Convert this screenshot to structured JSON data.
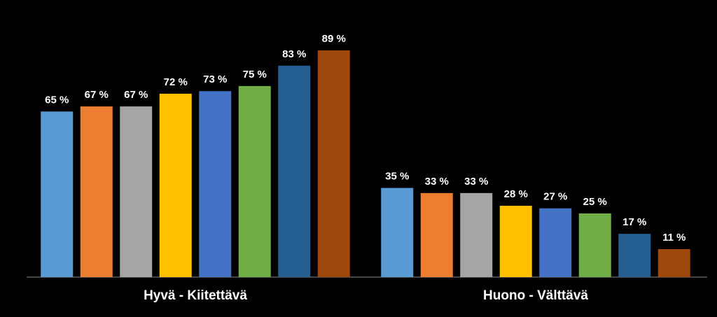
{
  "chart_data": {
    "type": "bar",
    "categories": [
      "Hyvä - Kiitettävä",
      "Huono - Välttävä"
    ],
    "series": [
      {
        "color": "#5b9bd5",
        "values": [
          65,
          35
        ],
        "value_labels": [
          "65 %",
          "35 %"
        ]
      },
      {
        "color": "#ed7d31",
        "values": [
          67,
          33
        ],
        "value_labels": [
          "67 %",
          "33 %"
        ]
      },
      {
        "color": "#a5a5a5",
        "values": [
          67,
          33
        ],
        "value_labels": [
          "67 %",
          "33 %"
        ]
      },
      {
        "color": "#ffc000",
        "values": [
          72,
          28
        ],
        "value_labels": [
          "72 %",
          "28 %"
        ]
      },
      {
        "color": "#4472c4",
        "values": [
          73,
          27
        ],
        "value_labels": [
          "73 %",
          "27 %"
        ]
      },
      {
        "color": "#70ad47",
        "values": [
          75,
          25
        ],
        "value_labels": [
          "75 %",
          "25 %"
        ]
      },
      {
        "color": "#255e91",
        "values": [
          83,
          17
        ],
        "value_labels": [
          "83 %",
          "17 %"
        ]
      },
      {
        "color": "#9e480e",
        "values": [
          89,
          11
        ],
        "value_labels": [
          "89 %",
          "11 %"
        ]
      }
    ]
  }
}
